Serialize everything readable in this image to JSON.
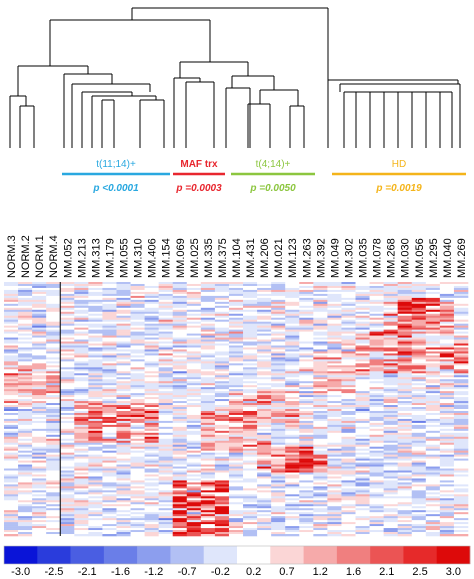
{
  "groups": [
    {
      "label": "t(11;14)+",
      "pvalue": "p <0.0001",
      "color": "#29a8e0"
    },
    {
      "label": "MAF trx",
      "pvalue": "p =0.0003",
      "color": "#e8262e"
    },
    {
      "label": "t(4;14)+",
      "pvalue": "p =0.0050",
      "color": "#8cc63f"
    },
    {
      "label": "HD",
      "pvalue": "p =0.0019",
      "color": "#f4b41a"
    }
  ],
  "samples": [
    "NORM.3",
    "NORM.2",
    "NORM.1",
    "NORM.4",
    "MM.052",
    "MM.213",
    "MM.313",
    "MM.179",
    "MM.055",
    "MM.310",
    "MM.406",
    "MM.154",
    "MM.069",
    "MM.025",
    "MM.335",
    "MM.375",
    "MM.104",
    "MM.431",
    "MM.206",
    "MM.021",
    "MM.123",
    "MM.263",
    "MM.392",
    "MM.049",
    "MM.302",
    "MM.035",
    "MM.078",
    "MM.268",
    "MM.030",
    "MM.056",
    "MM.295",
    "MM.040",
    "MM.269"
  ],
  "legend": {
    "ticks": [
      "-3.0",
      "-2.5",
      "-2.1",
      "-1.6",
      "-1.2",
      "-0.7",
      "-0.2",
      "0.2",
      "0.7",
      "1.2",
      "1.6",
      "2.1",
      "2.5",
      "3.0"
    ],
    "colors": [
      "#0a14d8",
      "#2a3cdc",
      "#4a5ee2",
      "#6a7ee8",
      "#8c9eee",
      "#b2c0f4",
      "#dfe6fb",
      "#ffffff",
      "#fbd6d6",
      "#f6aaaa",
      "#f07f7f",
      "#eb5454",
      "#e62a2a",
      "#dd0a0a"
    ]
  }
}
